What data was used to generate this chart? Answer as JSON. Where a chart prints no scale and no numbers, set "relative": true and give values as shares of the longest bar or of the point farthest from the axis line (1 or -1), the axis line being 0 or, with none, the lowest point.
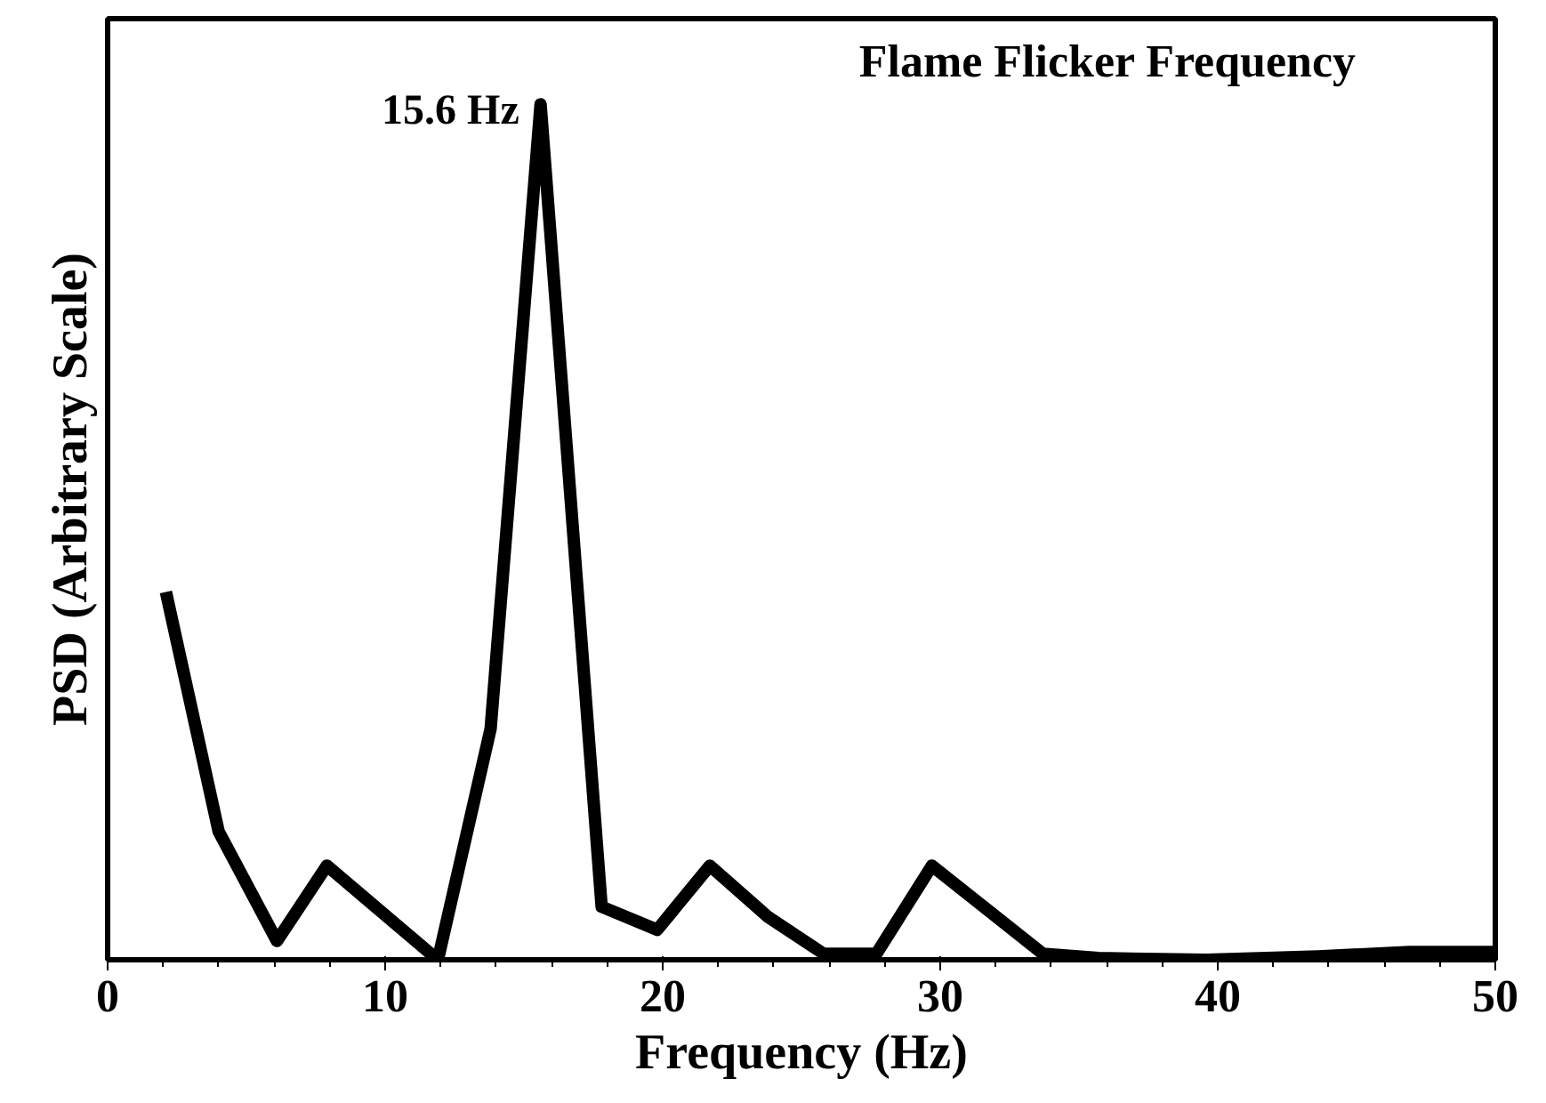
{
  "chart_data": {
    "type": "line",
    "title": "Flame Flicker Frequency",
    "xlabel": "Frequency (Hz)",
    "ylabel": "PSD (Arbitrary Scale)",
    "relative": true,
    "xlim": [
      0,
      50
    ],
    "xticks": [
      0,
      10,
      20,
      30,
      40,
      50
    ],
    "grid": false,
    "marker": "none",
    "line_style": "solid",
    "annotations": [
      {
        "text": "15.6 Hz",
        "x": 15.6,
        "y": 1
      }
    ],
    "series": [
      {
        "color": "#000000",
        "x": [
          2.1,
          4.0,
          6.1,
          7.9,
          11.9,
          13.8,
          15.6,
          17.8,
          19.8,
          21.7,
          23.8,
          25.8,
          27.7,
          29.7,
          33.7,
          35.7,
          39.6,
          43.6,
          46.9,
          50
        ],
        "values": [
          0.43,
          0.15,
          0.022,
          0.11,
          0,
          0.27,
          1,
          0.062,
          0.035,
          0.11,
          0.05,
          0.007,
          0.007,
          0.11,
          0.007,
          0.002,
          0,
          0.004,
          0.009,
          0.009
        ]
      }
    ]
  }
}
